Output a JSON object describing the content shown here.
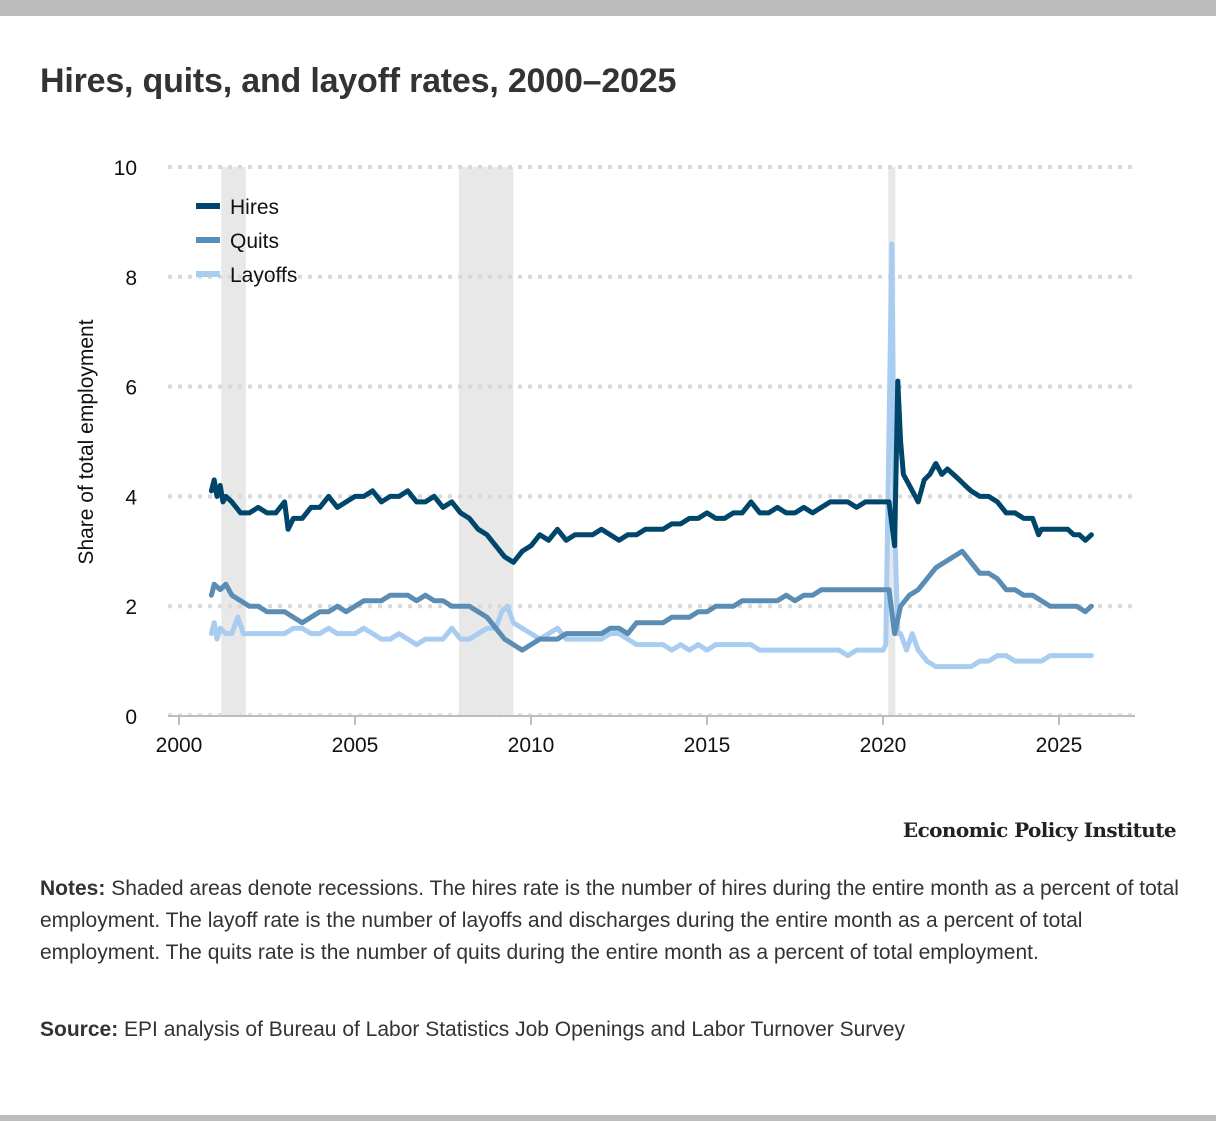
{
  "title": "Hires, quits, and layoff rates, 2000–2025",
  "brand": "Economic Policy Institute",
  "notes": {
    "label": "Notes:",
    "text": "Shaded areas denote recessions. The hires rate is the number of hires during the entire month as a percent of total employment. The layoff rate is the number of layoffs and discharges during the entire month as a percent of total employment. The quits rate is the number of quits during the entire month as a percent of total employment."
  },
  "source": {
    "label": "Source:",
    "text": "EPI analysis of Bureau of Labor Statistics Job Openings and Labor Turnover Survey"
  },
  "chart_data": {
    "type": "line",
    "title": "Hires, quits, and layoff rates, 2000–2025",
    "xlabel": "",
    "ylabel": "Share of total employment",
    "xlim": [
      1999.7,
      2026.8
    ],
    "ylim": [
      0,
      10
    ],
    "xticks": [
      2000,
      2005,
      2010,
      2015,
      2020,
      2025
    ],
    "yticks": [
      0,
      2,
      4,
      6,
      8,
      10
    ],
    "grid": "horizontal-dotted",
    "legend": "top-left",
    "recessions": [
      [
        2001.2,
        2001.9
      ],
      [
        2007.95,
        2009.5
      ],
      [
        2020.15,
        2020.35
      ]
    ],
    "series": [
      {
        "name": "Hires",
        "color": "#00466a",
        "x": [
          2000.92,
          2001.0,
          2001.08,
          2001.17,
          2001.25,
          2001.33,
          2001.5,
          2001.75,
          2002.0,
          2002.25,
          2002.5,
          2002.75,
          2003.0,
          2003.1,
          2003.25,
          2003.5,
          2003.75,
          2004.0,
          2004.25,
          2004.5,
          2004.75,
          2005.0,
          2005.25,
          2005.5,
          2005.75,
          2006.0,
          2006.25,
          2006.5,
          2006.75,
          2007.0,
          2007.25,
          2007.5,
          2007.75,
          2008.0,
          2008.25,
          2008.5,
          2008.75,
          2009.0,
          2009.25,
          2009.5,
          2009.75,
          2010.0,
          2010.25,
          2010.5,
          2010.75,
          2011.0,
          2011.25,
          2011.5,
          2011.75,
          2012.0,
          2012.25,
          2012.5,
          2012.75,
          2013.0,
          2013.25,
          2013.5,
          2013.75,
          2014.0,
          2014.25,
          2014.5,
          2014.75,
          2015.0,
          2015.25,
          2015.5,
          2015.75,
          2016.0,
          2016.25,
          2016.5,
          2016.75,
          2017.0,
          2017.25,
          2017.5,
          2017.75,
          2018.0,
          2018.25,
          2018.5,
          2018.75,
          2019.0,
          2019.25,
          2019.5,
          2019.75,
          2020.0,
          2020.17,
          2020.25,
          2020.33,
          2020.42,
          2020.5,
          2020.58,
          2020.75,
          2021.0,
          2021.17,
          2021.33,
          2021.5,
          2021.67,
          2021.83,
          2022.0,
          2022.17,
          2022.33,
          2022.5,
          2022.75,
          2023.0,
          2023.25,
          2023.5,
          2023.75,
          2024.0,
          2024.25,
          2024.42,
          2024.5,
          2024.75,
          2025.0,
          2025.25,
          2025.42,
          2025.58,
          2025.75,
          2025.92
        ],
        "values": [
          4.1,
          4.3,
          4.0,
          4.2,
          3.9,
          4.0,
          3.9,
          3.7,
          3.7,
          3.8,
          3.7,
          3.7,
          3.9,
          3.4,
          3.6,
          3.6,
          3.8,
          3.8,
          4.0,
          3.8,
          3.9,
          4.0,
          4.0,
          4.1,
          3.9,
          4.0,
          4.0,
          4.1,
          3.9,
          3.9,
          4.0,
          3.8,
          3.9,
          3.7,
          3.6,
          3.4,
          3.3,
          3.1,
          2.9,
          2.8,
          3.0,
          3.1,
          3.3,
          3.2,
          3.4,
          3.2,
          3.3,
          3.3,
          3.3,
          3.4,
          3.3,
          3.2,
          3.3,
          3.3,
          3.4,
          3.4,
          3.4,
          3.5,
          3.5,
          3.6,
          3.6,
          3.7,
          3.6,
          3.6,
          3.7,
          3.7,
          3.9,
          3.7,
          3.7,
          3.8,
          3.7,
          3.7,
          3.8,
          3.7,
          3.8,
          3.9,
          3.9,
          3.9,
          3.8,
          3.9,
          3.9,
          3.9,
          3.9,
          3.5,
          3.1,
          6.1,
          5.0,
          4.4,
          4.2,
          3.9,
          4.3,
          4.4,
          4.6,
          4.4,
          4.5,
          4.4,
          4.3,
          4.2,
          4.1,
          4.0,
          4.0,
          3.9,
          3.7,
          3.7,
          3.6,
          3.6,
          3.3,
          3.4,
          3.4,
          3.4,
          3.4,
          3.3,
          3.3,
          3.2,
          3.3
        ]
      },
      {
        "name": "Quits",
        "color": "#5b8db4",
        "x": [
          2000.92,
          2001.0,
          2001.17,
          2001.33,
          2001.5,
          2001.75,
          2002.0,
          2002.25,
          2002.5,
          2002.75,
          2003.0,
          2003.25,
          2003.5,
          2003.75,
          2004.0,
          2004.25,
          2004.5,
          2004.75,
          2005.0,
          2005.25,
          2005.5,
          2005.75,
          2006.0,
          2006.25,
          2006.5,
          2006.75,
          2007.0,
          2007.25,
          2007.5,
          2007.75,
          2008.0,
          2008.25,
          2008.5,
          2008.75,
          2009.0,
          2009.25,
          2009.5,
          2009.75,
          2010.0,
          2010.25,
          2010.5,
          2010.75,
          2011.0,
          2011.25,
          2011.5,
          2011.75,
          2012.0,
          2012.25,
          2012.5,
          2012.75,
          2013.0,
          2013.25,
          2013.5,
          2013.75,
          2014.0,
          2014.25,
          2014.5,
          2014.75,
          2015.0,
          2015.25,
          2015.5,
          2015.75,
          2016.0,
          2016.25,
          2016.5,
          2016.75,
          2017.0,
          2017.25,
          2017.5,
          2017.75,
          2018.0,
          2018.25,
          2018.5,
          2018.75,
          2019.0,
          2019.25,
          2019.5,
          2019.75,
          2020.0,
          2020.17,
          2020.33,
          2020.5,
          2020.75,
          2021.0,
          2021.25,
          2021.5,
          2021.75,
          2022.0,
          2022.25,
          2022.5,
          2022.75,
          2023.0,
          2023.25,
          2023.5,
          2023.75,
          2024.0,
          2024.25,
          2024.5,
          2024.75,
          2025.0,
          2025.25,
          2025.5,
          2025.75,
          2025.92
        ],
        "values": [
          2.2,
          2.4,
          2.3,
          2.4,
          2.2,
          2.1,
          2.0,
          2.0,
          1.9,
          1.9,
          1.9,
          1.8,
          1.7,
          1.8,
          1.9,
          1.9,
          2.0,
          1.9,
          2.0,
          2.1,
          2.1,
          2.1,
          2.2,
          2.2,
          2.2,
          2.1,
          2.2,
          2.1,
          2.1,
          2.0,
          2.0,
          2.0,
          1.9,
          1.8,
          1.6,
          1.4,
          1.3,
          1.2,
          1.3,
          1.4,
          1.4,
          1.4,
          1.5,
          1.5,
          1.5,
          1.5,
          1.5,
          1.6,
          1.6,
          1.5,
          1.7,
          1.7,
          1.7,
          1.7,
          1.8,
          1.8,
          1.8,
          1.9,
          1.9,
          2.0,
          2.0,
          2.0,
          2.1,
          2.1,
          2.1,
          2.1,
          2.1,
          2.2,
          2.1,
          2.2,
          2.2,
          2.3,
          2.3,
          2.3,
          2.3,
          2.3,
          2.3,
          2.3,
          2.3,
          2.3,
          1.5,
          2.0,
          2.2,
          2.3,
          2.5,
          2.7,
          2.8,
          2.9,
          3.0,
          2.8,
          2.6,
          2.6,
          2.5,
          2.3,
          2.3,
          2.2,
          2.2,
          2.1,
          2.0,
          2.0,
          2.0,
          2.0,
          1.9,
          2.0
        ]
      },
      {
        "name": "Layoffs",
        "color": "#a8cdf0",
        "x": [
          2000.92,
          2001.0,
          2001.08,
          2001.17,
          2001.33,
          2001.5,
          2001.67,
          2001.83,
          2002.0,
          2002.25,
          2002.5,
          2002.75,
          2003.0,
          2003.25,
          2003.5,
          2003.75,
          2004.0,
          2004.25,
          2004.5,
          2004.75,
          2005.0,
          2005.25,
          2005.5,
          2005.75,
          2006.0,
          2006.25,
          2006.5,
          2006.75,
          2007.0,
          2007.25,
          2007.5,
          2007.75,
          2008.0,
          2008.25,
          2008.5,
          2008.75,
          2009.0,
          2009.17,
          2009.33,
          2009.5,
          2009.75,
          2010.0,
          2010.25,
          2010.5,
          2010.75,
          2011.0,
          2011.25,
          2011.5,
          2011.75,
          2012.0,
          2012.25,
          2012.5,
          2012.75,
          2013.0,
          2013.25,
          2013.5,
          2013.75,
          2014.0,
          2014.25,
          2014.5,
          2014.75,
          2015.0,
          2015.25,
          2015.5,
          2015.75,
          2016.0,
          2016.25,
          2016.5,
          2016.75,
          2017.0,
          2017.25,
          2017.5,
          2017.75,
          2018.0,
          2018.25,
          2018.5,
          2018.75,
          2019.0,
          2019.25,
          2019.5,
          2019.75,
          2020.0,
          2020.08,
          2020.25,
          2020.33,
          2020.42,
          2020.5,
          2020.67,
          2020.83,
          2021.0,
          2021.25,
          2021.5,
          2021.75,
          2022.0,
          2022.25,
          2022.5,
          2022.75,
          2023.0,
          2023.25,
          2023.5,
          2023.75,
          2024.0,
          2024.25,
          2024.5,
          2024.75,
          2025.0,
          2025.25,
          2025.5,
          2025.75,
          2025.92
        ],
        "values": [
          1.5,
          1.7,
          1.4,
          1.6,
          1.5,
          1.5,
          1.8,
          1.5,
          1.5,
          1.5,
          1.5,
          1.5,
          1.5,
          1.6,
          1.6,
          1.5,
          1.5,
          1.6,
          1.5,
          1.5,
          1.5,
          1.6,
          1.5,
          1.4,
          1.4,
          1.5,
          1.4,
          1.3,
          1.4,
          1.4,
          1.4,
          1.6,
          1.4,
          1.4,
          1.5,
          1.6,
          1.6,
          1.9,
          2.0,
          1.7,
          1.6,
          1.5,
          1.4,
          1.5,
          1.6,
          1.4,
          1.4,
          1.4,
          1.4,
          1.4,
          1.5,
          1.5,
          1.4,
          1.3,
          1.3,
          1.3,
          1.3,
          1.2,
          1.3,
          1.2,
          1.3,
          1.2,
          1.3,
          1.3,
          1.3,
          1.3,
          1.3,
          1.2,
          1.2,
          1.2,
          1.2,
          1.2,
          1.2,
          1.2,
          1.2,
          1.2,
          1.2,
          1.1,
          1.2,
          1.2,
          1.2,
          1.2,
          1.3,
          8.6,
          3.5,
          1.5,
          1.5,
          1.2,
          1.5,
          1.2,
          1.0,
          0.9,
          0.9,
          0.9,
          0.9,
          0.9,
          1.0,
          1.0,
          1.1,
          1.1,
          1.0,
          1.0,
          1.0,
          1.0,
          1.1,
          1.1,
          1.1,
          1.1,
          1.1,
          1.1
        ]
      }
    ]
  }
}
